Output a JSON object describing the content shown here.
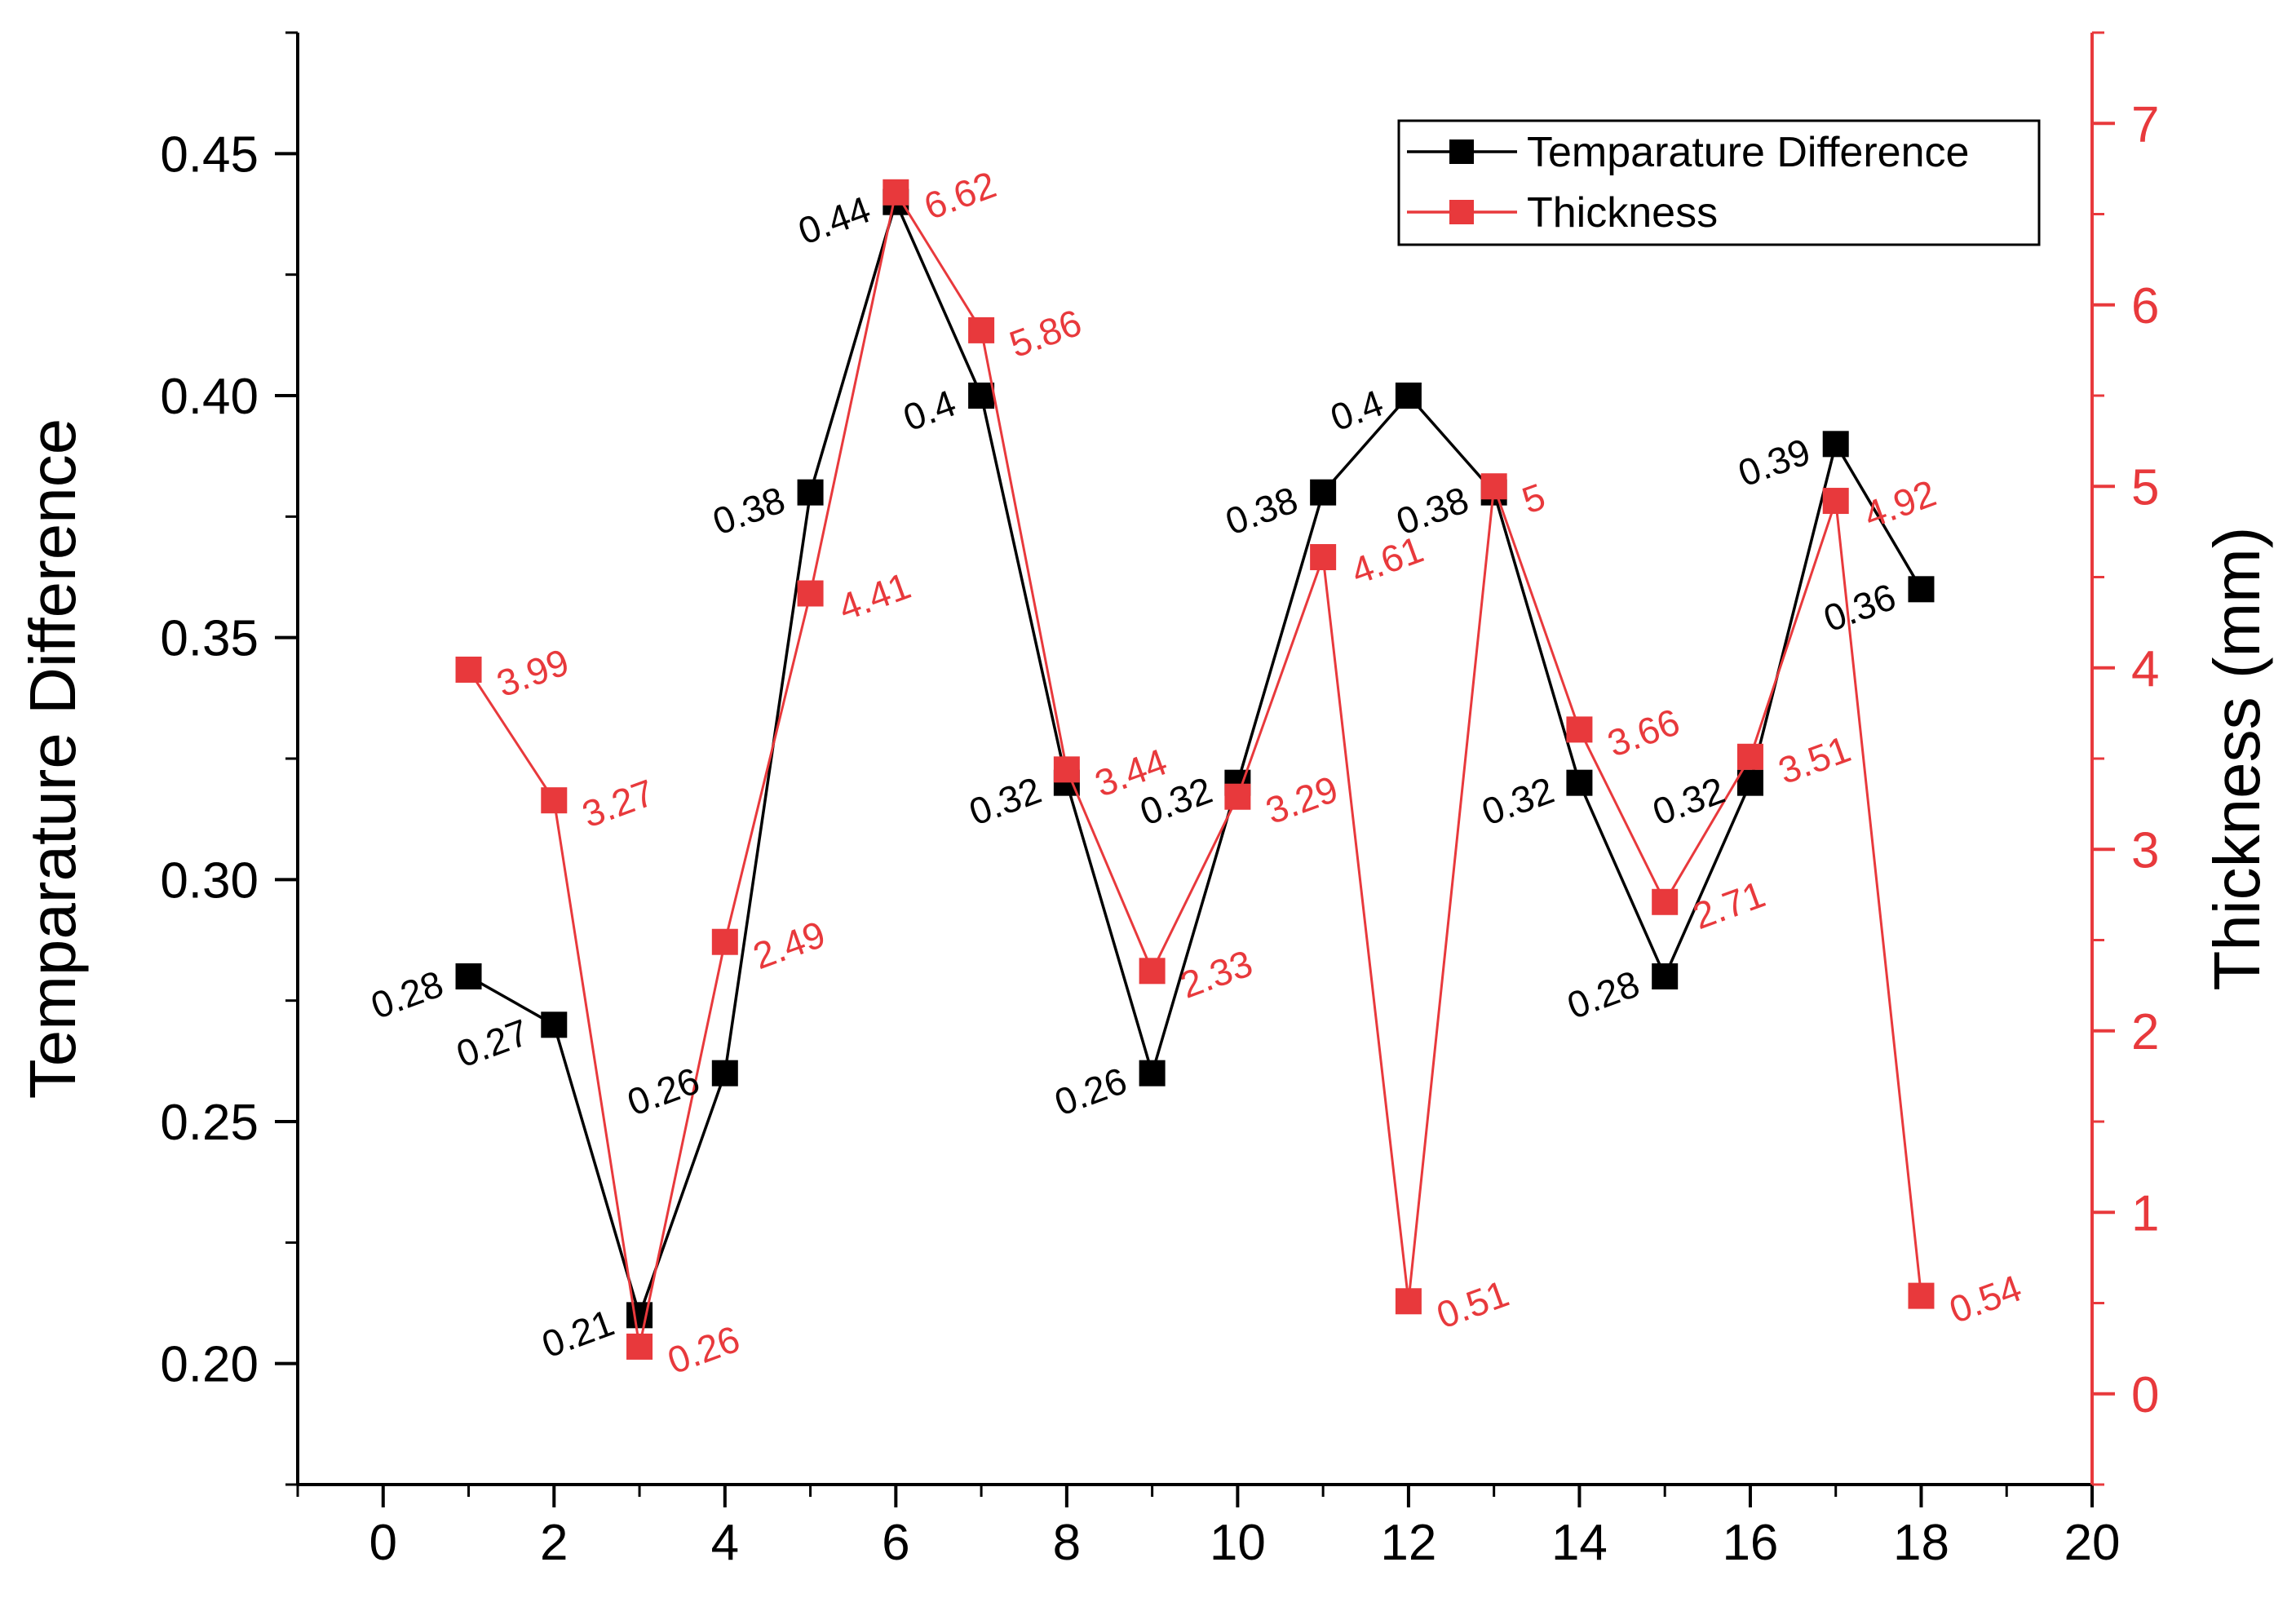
{
  "chart_data": {
    "type": "line",
    "title": "",
    "xlabel": "",
    "ylabel": "Temparature Difference",
    "y2label": "Thickness (mm)",
    "xlim": [
      -1,
      20
    ],
    "ylim": [
      0.175,
      0.475
    ],
    "y2lim": [
      -0.5,
      7.5
    ],
    "xticks": [
      "0",
      "2",
      "4",
      "6",
      "8",
      "10",
      "12",
      "14",
      "16",
      "18",
      "20"
    ],
    "yticks": [
      "0.20",
      "0.25",
      "0.30",
      "0.35",
      "0.40",
      "0.45"
    ],
    "y2ticks": [
      "0",
      "1",
      "2",
      "3",
      "4",
      "5",
      "6",
      "7"
    ],
    "x": [
      1,
      2,
      3,
      4,
      5,
      6,
      7,
      8,
      9,
      10,
      11,
      12,
      13,
      14,
      15,
      16,
      17,
      18
    ],
    "series": [
      {
        "name": "Temparature Difference",
        "axis": "left",
        "color": "#000000",
        "values": [
          0.28,
          0.27,
          0.21,
          0.26,
          0.38,
          0.44,
          0.4,
          0.32,
          0.26,
          0.32,
          0.38,
          0.4,
          0.38,
          0.32,
          0.28,
          0.32,
          0.39,
          0.36
        ],
        "labels": [
          "0.28",
          "0.27",
          "0.21",
          "0.26",
          "0.38",
          "0.44",
          "0.4",
          "0.32",
          "0.26",
          "0.32",
          "0.38",
          "0.4",
          "0.38",
          "0.32",
          "0.28",
          "0.32",
          "0.39",
          "0.36"
        ]
      },
      {
        "name": "Thickness",
        "axis": "right",
        "color": "#e8393c",
        "values": [
          3.99,
          3.27,
          0.26,
          2.49,
          4.41,
          6.62,
          5.86,
          3.44,
          2.33,
          3.29,
          4.61,
          0.51,
          5.0,
          3.66,
          2.71,
          3.51,
          4.92,
          0.54
        ],
        "labels": [
          "3.99",
          "3.27",
          "0.26",
          "2.49",
          "4.41",
          "6.62",
          "5.86",
          "3.44",
          "2.33",
          "3.29",
          "4.61",
          "0.51",
          "5",
          "3.66",
          "2.71",
          "3.51",
          "4.92",
          "0.54"
        ]
      }
    ],
    "legend": "top-right"
  }
}
